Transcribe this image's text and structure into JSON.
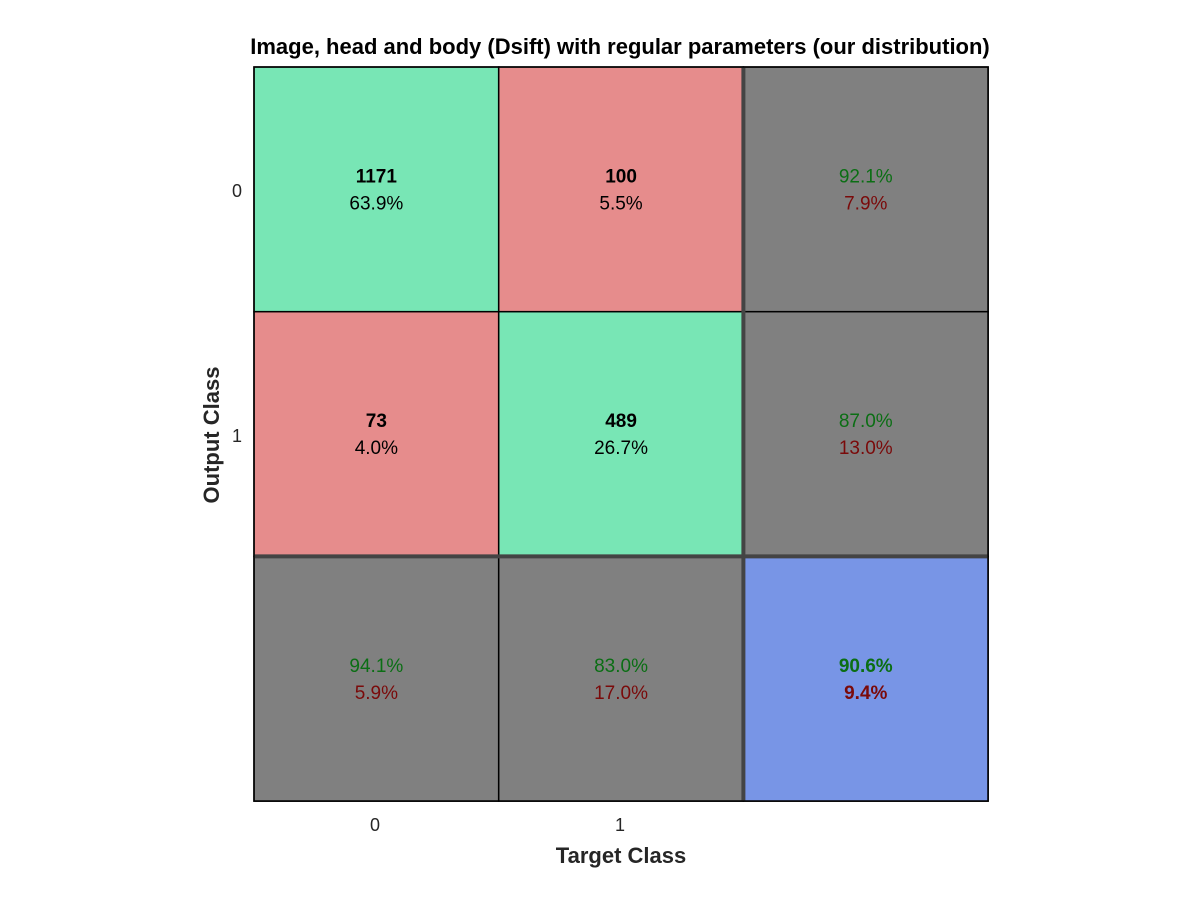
{
  "chart_data": {
    "type": "heatmap",
    "title": "Image, head and body (Dsift) with regular parameters (our distribution)",
    "xlabel": "Target Class",
    "ylabel": "Output Class",
    "x_tick_labels": [
      "0",
      "1"
    ],
    "y_tick_labels": [
      "0",
      "1"
    ],
    "matrix": [
      [
        1171,
        100
      ],
      [
        73,
        489
      ]
    ],
    "matrix_percent": [
      [
        "63.9%",
        "5.5%"
      ],
      [
        "4.0%",
        "26.7%"
      ]
    ],
    "row_summary": [
      {
        "correct": "92.1%",
        "incorrect": "7.9%"
      },
      {
        "correct": "87.0%",
        "incorrect": "13.0%"
      }
    ],
    "column_summary": [
      {
        "correct": "94.1%",
        "incorrect": "5.9%"
      },
      {
        "correct": "83.0%",
        "incorrect": "17.0%"
      }
    ],
    "overall": {
      "correct": "90.6%",
      "incorrect": "9.4%"
    },
    "colors": {
      "correct_cell": "#78e6b5",
      "incorrect_cell": "#e68c8c",
      "summary_cell": "#808080",
      "overall_cell": "#7895e6",
      "correct_text": "#0b6e14",
      "incorrect_text": "#7a0a0a"
    }
  }
}
